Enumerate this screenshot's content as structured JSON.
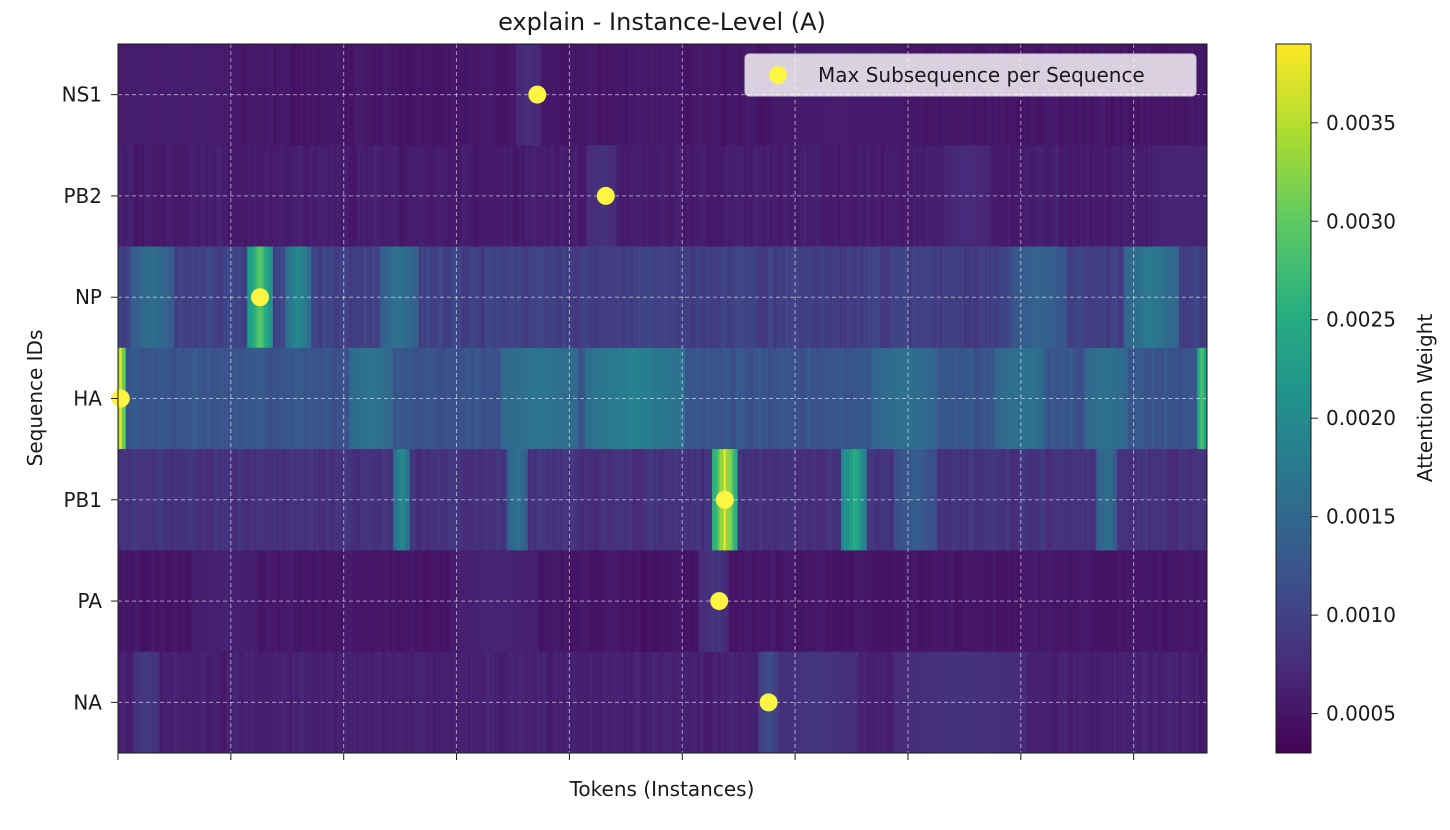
{
  "chart_data": {
    "type": "heatmap",
    "title": "explain - Instance-Level (A)",
    "xlabel": "Tokens (Instances)",
    "ylabel": "Sequence IDs",
    "colorbar_label": "Attention Weight",
    "colorbar_ticks": [
      "0.0005",
      "0.0010",
      "0.0015",
      "0.0020",
      "0.0025",
      "0.0030",
      "0.0035"
    ],
    "colorbar_range": [
      0.0003,
      0.0039
    ],
    "colormap": "viridis",
    "grid": true,
    "legend": {
      "placement": "top-right",
      "label": "Max Subsequence per Sequence",
      "marker_color": "#fdf542"
    },
    "x_ticks_count": 10,
    "n_tokens": 970,
    "rows": [
      {
        "id": "NS1",
        "base": 0.00052,
        "var": 0.0001,
        "max_token": 373,
        "max_value": 0.00085,
        "peaks": [
          [
            365,
            12,
            0.0008
          ],
          [
            48,
            60,
            0.0006
          ],
          [
            640,
            60,
            0.00058
          ]
        ]
      },
      {
        "id": "PB2",
        "base": 0.00058,
        "var": 0.00012,
        "max_token": 434,
        "max_value": 0.0009,
        "peaks": [
          [
            430,
            14,
            0.00085
          ],
          [
            755,
            20,
            0.00075
          ],
          [
            945,
            25,
            0.00068
          ]
        ]
      },
      {
        "id": "NP",
        "base": 0.00098,
        "var": 0.0002,
        "max_token": 126,
        "max_value": 0.00315,
        "peaks": [
          [
            126,
            12,
            0.00305
          ],
          [
            160,
            12,
            0.0021
          ],
          [
            30,
            20,
            0.00165
          ],
          [
            250,
            18,
            0.0017
          ],
          [
            820,
            25,
            0.0015
          ],
          [
            920,
            25,
            0.00185
          ]
        ]
      },
      {
        "id": "HA",
        "base": 0.00125,
        "var": 0.00018,
        "max_token": 2,
        "max_value": 0.0039,
        "peaks": [
          [
            2,
            5,
            0.00385
          ],
          [
            965,
            5,
            0.003
          ],
          [
            460,
            45,
            0.00195
          ],
          [
            375,
            35,
            0.00175
          ],
          [
            225,
            20,
            0.00175
          ],
          [
            700,
            30,
            0.00165
          ],
          [
            800,
            20,
            0.00165
          ],
          [
            810,
            15,
            0.0017
          ],
          [
            880,
            20,
            0.0017
          ]
        ]
      },
      {
        "id": "PB1",
        "base": 0.00082,
        "var": 0.00018,
        "max_token": 540,
        "max_value": 0.0039,
        "peaks": [
          [
            540,
            12,
            0.0038
          ],
          [
            655,
            12,
            0.0027
          ],
          [
            252,
            8,
            0.00215
          ],
          [
            355,
            10,
            0.00175
          ],
          [
            880,
            10,
            0.0017
          ],
          [
            710,
            20,
            0.0014
          ]
        ]
      },
      {
        "id": "PA",
        "base": 0.00052,
        "var": 0.0001,
        "max_token": 535,
        "max_value": 0.00095,
        "peaks": [
          [
            530,
            14,
            0.0009
          ],
          [
            335,
            40,
            0.00068
          ],
          [
            95,
            30,
            0.00065
          ]
        ]
      },
      {
        "id": "NA",
        "base": 0.00062,
        "var": 0.00012,
        "max_token": 579,
        "max_value": 0.00125,
        "peaks": [
          [
            579,
            10,
            0.00118
          ],
          [
            25,
            12,
            0.00095
          ],
          [
            620,
            40,
            0.0009
          ],
          [
            750,
            60,
            0.00085
          ]
        ]
      }
    ]
  }
}
